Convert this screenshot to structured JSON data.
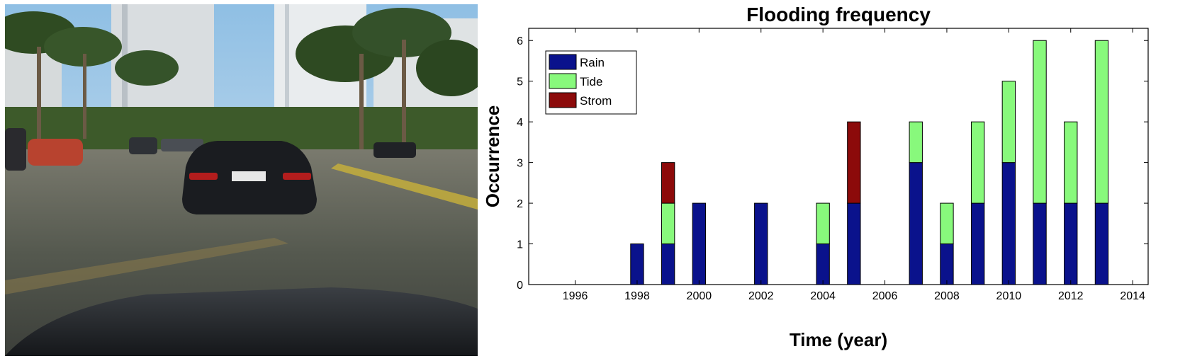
{
  "chart_data": {
    "type": "bar",
    "stacked": true,
    "title": "Flooding frequency",
    "xlabel": "Time (year)",
    "ylabel": "Occurrence",
    "xlim": [
      1994.5,
      2014.5
    ],
    "ylim": [
      0,
      6.3
    ],
    "xticks": [
      1996,
      1998,
      2000,
      2002,
      2004,
      2006,
      2008,
      2010,
      2012,
      2014
    ],
    "yticks": [
      0,
      1,
      2,
      3,
      4,
      5,
      6
    ],
    "grid": false,
    "legend_position": "top-left",
    "x": [
      1998,
      1999,
      2000,
      2002,
      2004,
      2005,
      2007,
      2008,
      2009,
      2010,
      2011,
      2012,
      2013
    ],
    "series": [
      {
        "name": "Rain",
        "color": "#0a128c",
        "values": [
          1,
          1,
          2,
          2,
          1,
          2,
          3,
          1,
          2,
          3,
          2,
          2,
          2
        ]
      },
      {
        "name": "Tide",
        "color": "#88f97c",
        "values": [
          0,
          1,
          0,
          0,
          1,
          0,
          1,
          1,
          2,
          2,
          4,
          2,
          4
        ]
      },
      {
        "name": "Strom",
        "color": "#8c0a0a",
        "values": [
          0,
          1,
          0,
          0,
          0,
          2,
          0,
          0,
          0,
          0,
          0,
          0,
          0
        ]
      }
    ]
  },
  "photo": {
    "sky_color": "#a9cdea",
    "water_color": "#55594f",
    "car_color": "#1a1c20"
  }
}
